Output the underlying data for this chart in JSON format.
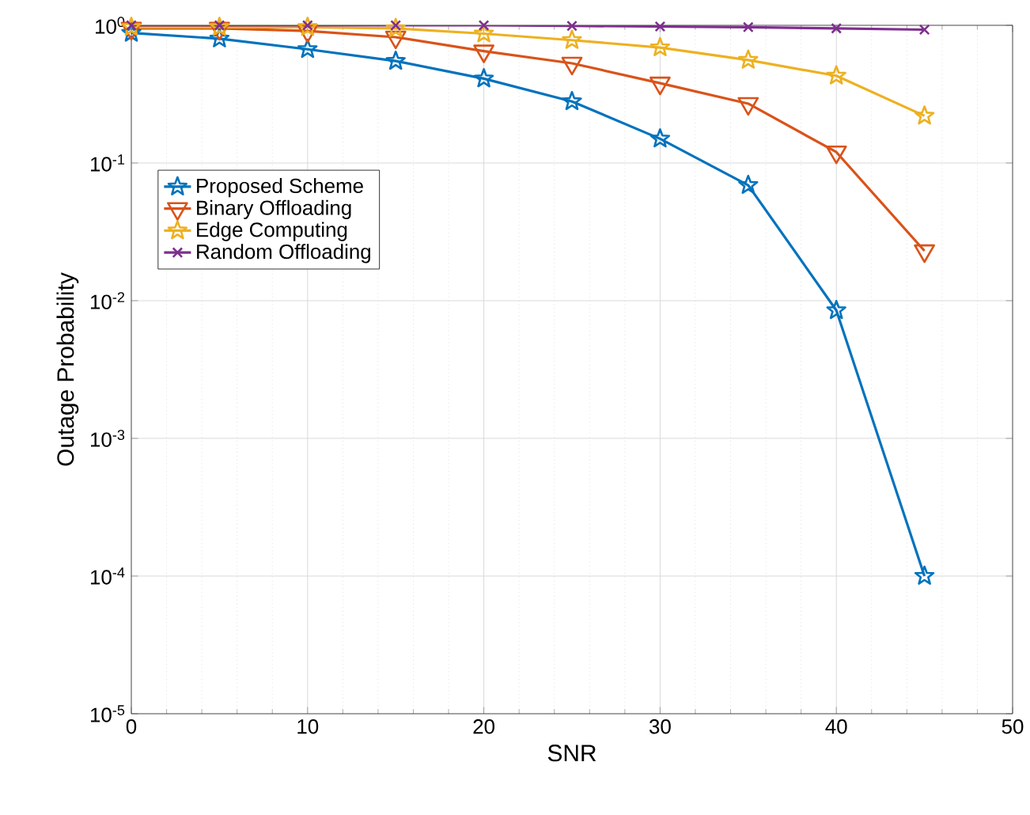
{
  "chart_data": {
    "type": "line",
    "xlabel": "SNR",
    "ylabel": "Outage Probability",
    "x": [
      0,
      5,
      10,
      15,
      20,
      25,
      30,
      35,
      40,
      45
    ],
    "series": [
      {
        "name": "Proposed Scheme",
        "color": "#0072bd",
        "marker": "star",
        "values": [
          0.88,
          0.8,
          0.67,
          0.55,
          0.41,
          0.28,
          0.15,
          0.069,
          0.0085,
          0.0001
        ]
      },
      {
        "name": "Binary Offloading",
        "color": "#d95319",
        "marker": "triangle",
        "values": [
          0.95,
          0.95,
          0.91,
          0.82,
          0.65,
          0.53,
          0.38,
          0.27,
          0.12,
          0.023
        ]
      },
      {
        "name": "Edge Computing",
        "color": "#edb120",
        "marker": "star",
        "values": [
          0.97,
          0.97,
          0.97,
          0.95,
          0.87,
          0.78,
          0.69,
          0.56,
          0.43,
          0.22
        ]
      },
      {
        "name": "Random Offloading",
        "color": "#7e2f8e",
        "marker": "cross",
        "values": [
          1.0,
          1.0,
          1.0,
          1.0,
          1.0,
          0.99,
          0.98,
          0.97,
          0.95,
          0.93
        ]
      }
    ],
    "xlim": [
      0,
      50
    ],
    "xticks": [
      0,
      10,
      20,
      30,
      40,
      50
    ],
    "ylim": [
      1e-05,
      1
    ],
    "yticks": [
      {
        "value": 1e-05,
        "label": "10$^{-5}$"
      },
      {
        "value": 0.0001,
        "label": "10$^{-4}$"
      },
      {
        "value": 0.001,
        "label": "10$^{-3}$"
      },
      {
        "value": 0.01,
        "label": "10$^{-2}$"
      },
      {
        "value": 0.1,
        "label": "10$^{-1}$"
      },
      {
        "value": 1,
        "label": "10$^{0}$"
      }
    ],
    "log": "y",
    "grid": true,
    "legend": "top left",
    "line_style": "solid"
  }
}
